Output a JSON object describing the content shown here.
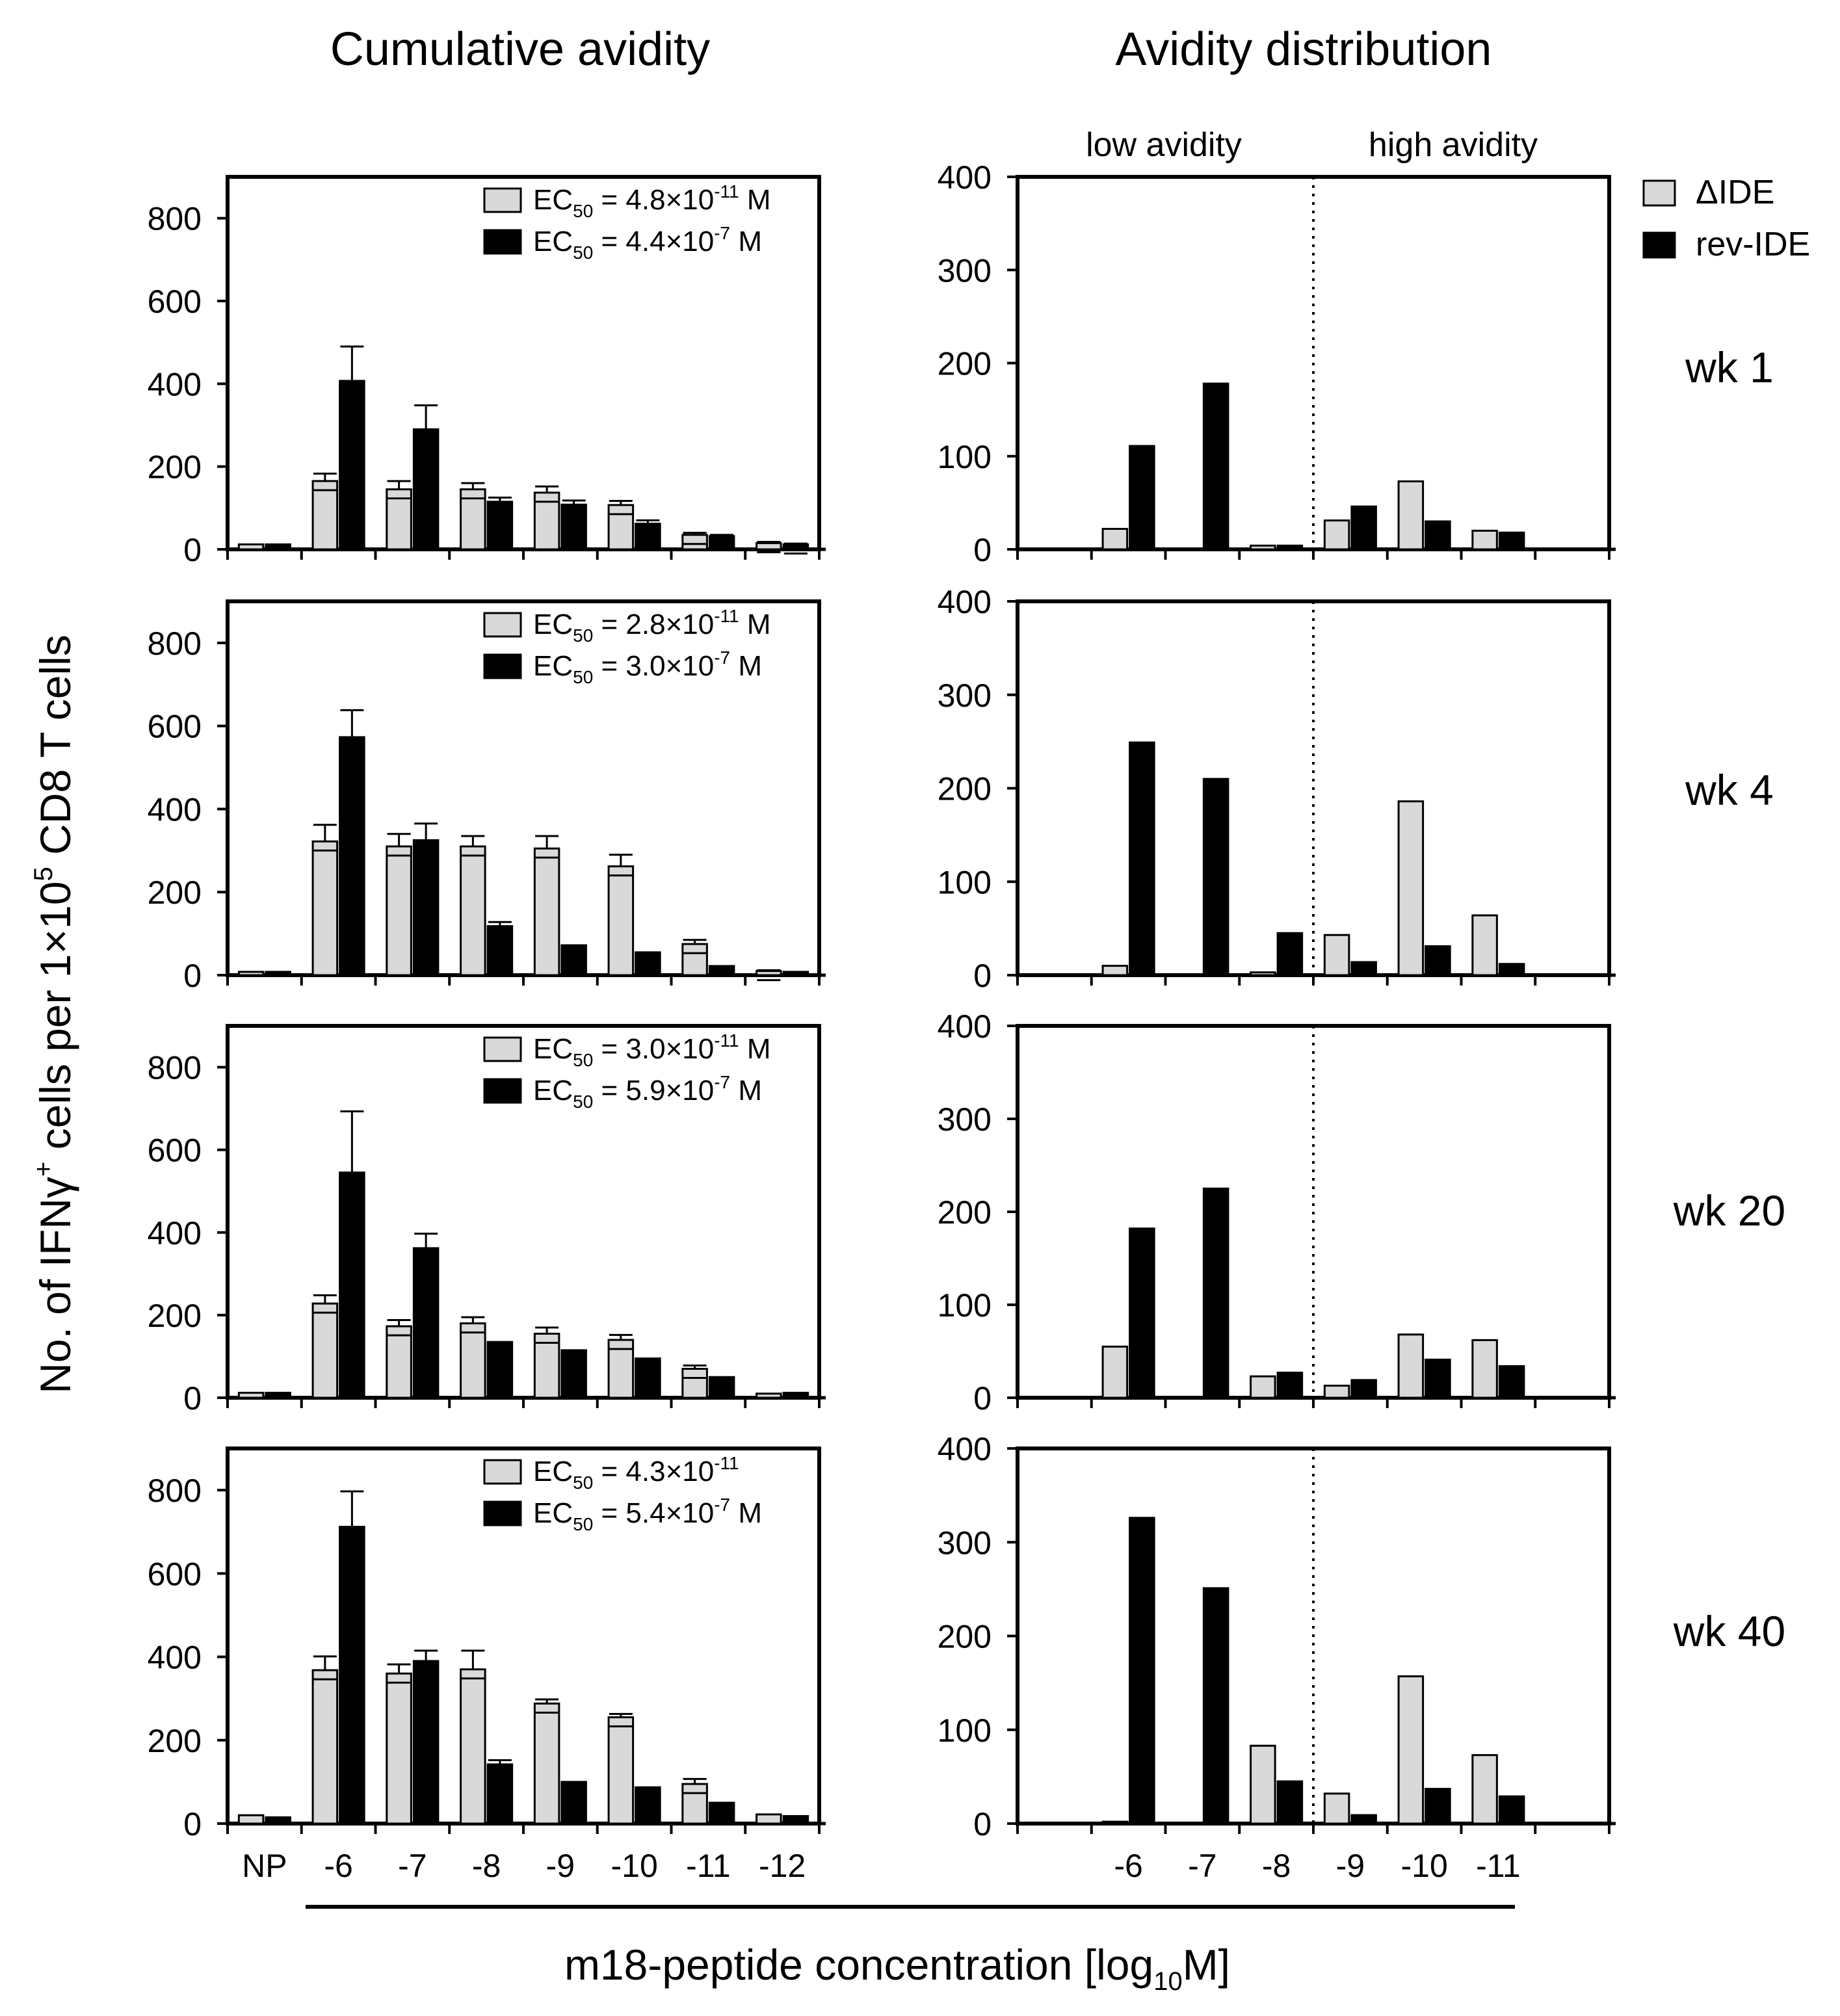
{
  "figure": {
    "left_title": "Cumulative avidity",
    "right_title": "Avidity distribution",
    "y_axis_label": {
      "pre": "No. of IFNγ",
      "sup1": "+",
      "mid": " cells per 1×10",
      "sup2": "5",
      "post": " CD8 T cells"
    },
    "x_axis_label": {
      "pre": "m18-peptide concentration [log",
      "sub": "10",
      "post": "M]"
    },
    "region_labels": {
      "low": "low avidity",
      "high": "high avidity"
    },
    "legend": {
      "series_a": "ΔIDE",
      "series_b": "rev-IDE"
    },
    "colors": {
      "series_a": "#d9d9d9",
      "series_b": "#000000",
      "axis": "#000000"
    },
    "ec50_prefix": "EC",
    "ec50_sub": "50"
  },
  "chart_data": [
    {
      "type": "bar",
      "panel": "cumulative",
      "timepoint": "wk 1",
      "categories": [
        "NP",
        "-6",
        "-7",
        "-8",
        "-9",
        "-10",
        "-11",
        "-12"
      ],
      "ylim": [
        0,
        900
      ],
      "yticks": [
        0,
        200,
        400,
        600,
        800
      ],
      "ec50": [
        {
          "main": " = 4.8×10",
          "exp": "-11",
          "unit": " M"
        },
        {
          "main": " = 4.4×10",
          "exp": "-7",
          "unit": " M"
        }
      ],
      "series": [
        {
          "name": "ΔIDE",
          "values": [
            12,
            165,
            145,
            145,
            137,
            107,
            35,
            15
          ],
          "errors": [
            0,
            18,
            20,
            15,
            15,
            10,
            5,
            3
          ]
        },
        {
          "name": "rev-IDE",
          "values": [
            12,
            407,
            290,
            115,
            108,
            62,
            32,
            12
          ],
          "errors": [
            0,
            83,
            58,
            10,
            10,
            8,
            3,
            2
          ]
        }
      ]
    },
    {
      "type": "bar",
      "panel": "distribution",
      "timepoint": "wk 1",
      "categories": [
        "-6",
        "-7",
        "-8",
        "-9",
        "-10",
        "-11"
      ],
      "ylim": [
        0,
        400
      ],
      "yticks": [
        0,
        100,
        200,
        300,
        400
      ],
      "series": [
        {
          "name": "ΔIDE",
          "values": [
            22,
            0,
            4,
            31,
            73,
            20
          ]
        },
        {
          "name": "rev-IDE",
          "values": [
            111,
            178,
            4,
            46,
            30,
            18
          ]
        }
      ]
    },
    {
      "type": "bar",
      "panel": "cumulative",
      "timepoint": "wk 4",
      "categories": [
        "NP",
        "-6",
        "-7",
        "-8",
        "-9",
        "-10",
        "-11",
        "-12"
      ],
      "ylim": [
        0,
        900
      ],
      "yticks": [
        0,
        200,
        400,
        600,
        800
      ],
      "ec50": [
        {
          "main": " = 2.8×10",
          "exp": "-11",
          "unit": " M"
        },
        {
          "main": " = 3.0×10",
          "exp": "-7",
          "unit": " M"
        }
      ],
      "series": [
        {
          "name": "ΔIDE",
          "values": [
            8,
            322,
            310,
            310,
            305,
            262,
            75,
            10
          ],
          "errors": [
            0,
            40,
            30,
            25,
            30,
            28,
            10,
            2
          ]
        },
        {
          "name": "rev-IDE",
          "values": [
            8,
            573,
            325,
            118,
            72,
            55,
            22,
            8
          ],
          "errors": [
            0,
            65,
            40,
            10,
            0,
            0,
            0,
            0
          ]
        }
      ]
    },
    {
      "type": "bar",
      "panel": "distribution",
      "timepoint": "wk 4",
      "categories": [
        "-6",
        "-7",
        "-8",
        "-9",
        "-10",
        "-11"
      ],
      "ylim": [
        0,
        400
      ],
      "yticks": [
        0,
        100,
        200,
        300,
        400
      ],
      "series": [
        {
          "name": "ΔIDE",
          "values": [
            10,
            0,
            3,
            43,
            186,
            64
          ]
        },
        {
          "name": "rev-IDE",
          "values": [
            249,
            210,
            45,
            14,
            31,
            12
          ]
        }
      ]
    },
    {
      "type": "bar",
      "panel": "cumulative",
      "timepoint": "wk 20",
      "categories": [
        "NP",
        "-6",
        "-7",
        "-8",
        "-9",
        "-10",
        "-11",
        "-12"
      ],
      "ylim": [
        0,
        900
      ],
      "yticks": [
        0,
        200,
        400,
        600,
        800
      ],
      "ec50": [
        {
          "main": " = 3.0×10",
          "exp": "-11",
          "unit": " M"
        },
        {
          "main": " = 5.9×10",
          "exp": "-7",
          "unit": " M"
        }
      ],
      "series": [
        {
          "name": "ΔIDE",
          "values": [
            12,
            228,
            173,
            180,
            155,
            140,
            70,
            10
          ],
          "errors": [
            0,
            20,
            15,
            15,
            15,
            12,
            8,
            0
          ]
        },
        {
          "name": "rev-IDE",
          "values": [
            12,
            545,
            362,
            135,
            115,
            95,
            50,
            12
          ],
          "errors": [
            0,
            148,
            35,
            0,
            0,
            0,
            0,
            0
          ]
        }
      ]
    },
    {
      "type": "bar",
      "panel": "distribution",
      "timepoint": "wk 20",
      "categories": [
        "-6",
        "-7",
        "-8",
        "-9",
        "-10",
        "-11"
      ],
      "ylim": [
        0,
        400
      ],
      "yticks": [
        0,
        100,
        200,
        300,
        400
      ],
      "series": [
        {
          "name": "ΔIDE",
          "values": [
            55,
            0,
            23,
            13,
            68,
            62
          ]
        },
        {
          "name": "rev-IDE",
          "values": [
            182,
            225,
            27,
            19,
            41,
            34
          ]
        }
      ]
    },
    {
      "type": "bar",
      "panel": "cumulative",
      "timepoint": "wk 40",
      "categories": [
        "NP",
        "-6",
        "-7",
        "-8",
        "-9",
        "-10",
        "-11",
        "-12"
      ],
      "ylim": [
        0,
        900
      ],
      "yticks": [
        0,
        200,
        400,
        600,
        800
      ],
      "ec50": [
        {
          "main": " = 4.3×10",
          "exp": "-11",
          "unit": ""
        },
        {
          "main": " = 5.4×10",
          "exp": "-7",
          "unit": " M"
        }
      ],
      "series": [
        {
          "name": "ΔIDE",
          "values": [
            20,
            368,
            360,
            370,
            288,
            255,
            95,
            22
          ],
          "errors": [
            0,
            33,
            22,
            45,
            10,
            8,
            12,
            0
          ]
        },
        {
          "name": "rev-IDE",
          "values": [
            15,
            712,
            390,
            142,
            100,
            87,
            50,
            18
          ],
          "errors": [
            0,
            85,
            25,
            10,
            0,
            0,
            0,
            0
          ]
        }
      ]
    },
    {
      "type": "bar",
      "panel": "distribution",
      "timepoint": "wk 40",
      "categories": [
        "-6",
        "-7",
        "-8",
        "-9",
        "-10",
        "-11"
      ],
      "ylim": [
        0,
        400
      ],
      "yticks": [
        0,
        100,
        200,
        300,
        400
      ],
      "series": [
        {
          "name": "ΔIDE",
          "values": [
            2,
            0,
            83,
            32,
            157,
            73
          ]
        },
        {
          "name": "rev-IDE",
          "values": [
            326,
            251,
            45,
            9,
            37,
            29
          ]
        }
      ]
    }
  ]
}
